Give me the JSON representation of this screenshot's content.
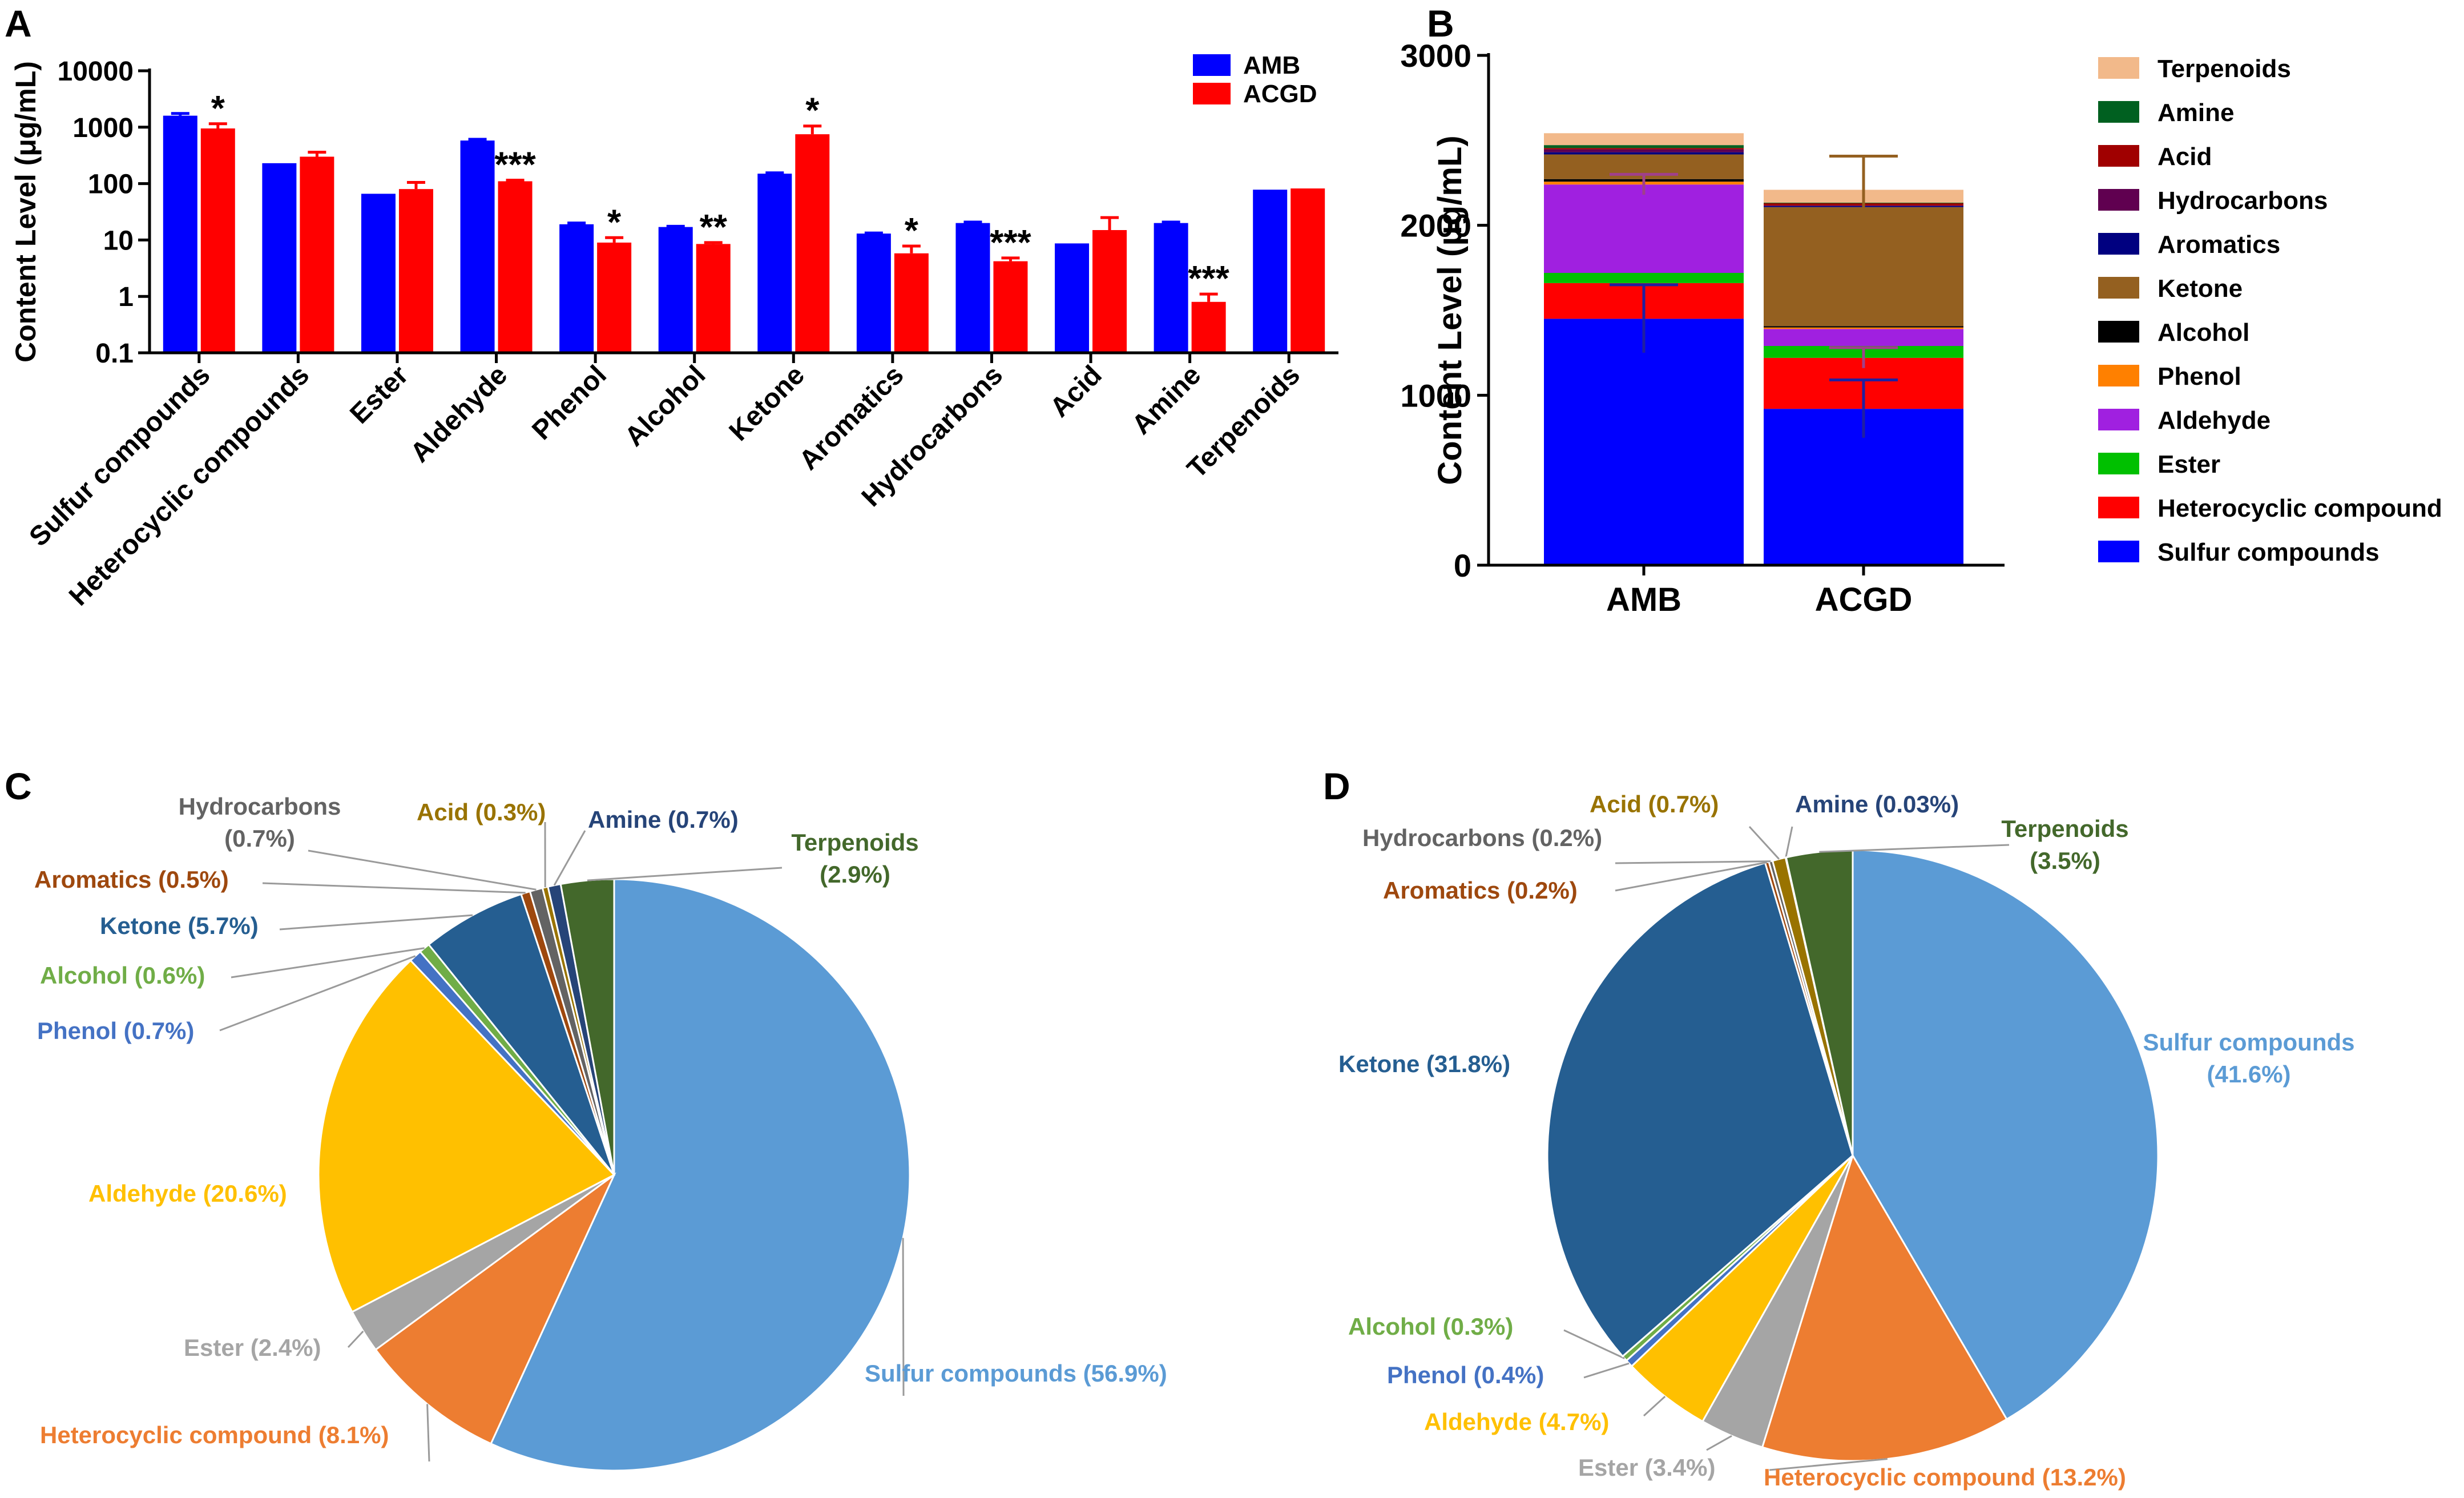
{
  "colors": {
    "amb": "#0000FF",
    "acgd": "#FF0000",
    "stack": {
      "Sulfur compounds": "#0000FF",
      "Heterocyclic compound": "#FF0000",
      "Ester": "#00C000",
      "Aldehyde": "#A020E0",
      "Phenol": "#FF8000",
      "Alcohol": "#000000",
      "Ketone": "#946020",
      "Aromatics": "#000080",
      "Hydrocarbons": "#600050",
      "Acid": "#A00000",
      "Amine": "#006020",
      "Terpenoids": "#F2B98A"
    },
    "pie": {
      "Sulfur compounds": "#5B9BD5",
      "Heterocyclic compound": "#ED7D31",
      "Ester": "#A5A5A5",
      "Aldehyde": "#FFC000",
      "Phenol": "#4472C4",
      "Alcohol": "#70AD47",
      "Ketone": "#255E91",
      "Aromatics": "#9E480E",
      "Hydrocarbons": "#636363",
      "Acid": "#997300",
      "Amine": "#264478",
      "Terpenoids": "#43682B"
    }
  },
  "chart_data": [
    {
      "panel": "A",
      "type": "bar",
      "scale": "log",
      "ylabel": "Content Level (μg/mL)",
      "ylim": [
        0.1,
        10000
      ],
      "yticks": [
        "0.1",
        "1",
        "10",
        "100",
        "1000",
        "10000"
      ],
      "categories": [
        "Sulfur compounds",
        "Heterocyclic compounds",
        "Ester",
        "Aldehyde",
        "Phenol",
        "Alcohol",
        "Ketone",
        "Aromatics",
        "Hydrocarbons",
        "Acid",
        "Amine",
        "Terpenoids"
      ],
      "series": [
        {
          "name": "AMB",
          "values": [
            1600,
            230,
            66,
            580,
            19,
            17,
            150,
            13,
            20,
            8.7,
            20,
            78
          ],
          "errors": [
            150,
            0,
            0,
            30,
            1,
            0.5,
            5,
            0.3,
            0.8,
            0,
            0.8,
            0
          ]
        },
        {
          "name": "ACGD",
          "values": [
            950,
            300,
            80,
            110,
            9,
            8.5,
            750,
            5.8,
            4.2,
            15,
            0.8,
            82
          ],
          "errors": [
            200,
            60,
            25,
            5,
            2,
            0.5,
            300,
            2,
            0.6,
            10,
            0.3,
            0
          ]
        }
      ],
      "annotations": [
        "*",
        "",
        "",
        "***",
        "*",
        "**",
        "*",
        "*",
        "***",
        "",
        "***",
        ""
      ]
    },
    {
      "panel": "B",
      "type": "bar",
      "stacked": true,
      "ylabel": "Content Level (μg/mL)",
      "ylim": [
        0,
        3000
      ],
      "yticks": [
        "0",
        "1000",
        "2000",
        "3000"
      ],
      "categories": [
        "AMB",
        "ACGD"
      ],
      "legend": [
        "Terpenoids",
        "Amine",
        "Acid",
        "Hydrocarbons",
        "Aromatics",
        "Ketone",
        "Alcohol",
        "Phenol",
        "Aldehyde",
        "Ester",
        "Heterocyclic compound",
        "Sulfur compounds"
      ],
      "series": [
        {
          "name": "Sulfur compounds",
          "values": [
            1450,
            920
          ]
        },
        {
          "name": "Heterocyclic compound",
          "values": [
            210,
            300
          ]
        },
        {
          "name": "Ester",
          "values": [
            60,
            70
          ]
        },
        {
          "name": "Aldehyde",
          "values": [
            520,
            100
          ]
        },
        {
          "name": "Phenol",
          "values": [
            17,
            9
          ]
        },
        {
          "name": "Alcohol",
          "values": [
            15,
            8
          ]
        },
        {
          "name": "Ketone",
          "values": [
            145,
            700
          ]
        },
        {
          "name": "Aromatics",
          "values": [
            13,
            6
          ]
        },
        {
          "name": "Hydrocarbons",
          "values": [
            17,
            4
          ]
        },
        {
          "name": "Acid",
          "values": [
            8,
            15
          ]
        },
        {
          "name": "Amine",
          "values": [
            17,
            1
          ]
        },
        {
          "name": "Terpenoids",
          "values": [
            70,
            76
          ]
        }
      ],
      "errors": [
        {
          "category": "AMB",
          "series": "Sulfur compounds",
          "value": 200
        },
        {
          "category": "AMB",
          "series": "Aldehyde",
          "value": 60
        },
        {
          "category": "ACGD",
          "series": "Sulfur compounds",
          "value": 170
        },
        {
          "category": "ACGD",
          "series": "Heterocyclic compound",
          "value": 60
        },
        {
          "category": "ACGD",
          "series": "Ketone",
          "value": 300
        }
      ]
    },
    {
      "panel": "C",
      "type": "pie",
      "slices": [
        {
          "name": "Sulfur compounds",
          "label": "Sulfur compounds (56.9%)",
          "value": 56.9
        },
        {
          "name": "Heterocyclic compound",
          "label": "Heterocyclic compound (8.1%)",
          "value": 8.1
        },
        {
          "name": "Ester",
          "label": "Ester (2.4%)",
          "value": 2.4
        },
        {
          "name": "Aldehyde",
          "label": "Aldehyde (20.6%)",
          "value": 20.6
        },
        {
          "name": "Phenol",
          "label": "Phenol (0.7%)",
          "value": 0.7
        },
        {
          "name": "Alcohol",
          "label": "Alcohol (0.6%)",
          "value": 0.6
        },
        {
          "name": "Ketone",
          "label": "Ketone (5.7%)",
          "value": 5.7
        },
        {
          "name": "Aromatics",
          "label": "Aromatics (0.5%)",
          "value": 0.5
        },
        {
          "name": "Hydrocarbons",
          "label": "Hydrocarbons (0.7%)",
          "value": 0.7
        },
        {
          "name": "Acid",
          "label": "Acid (0.3%)",
          "value": 0.3
        },
        {
          "name": "Amine",
          "label": "Amine (0.7%)",
          "value": 0.7
        },
        {
          "name": "Terpenoids",
          "label": "Terpenoids (2.9%)",
          "value": 2.9
        }
      ]
    },
    {
      "panel": "D",
      "type": "pie",
      "slices": [
        {
          "name": "Sulfur compounds",
          "label": "Sulfur compounds (41.6%)",
          "value": 41.6
        },
        {
          "name": "Heterocyclic compound",
          "label": "Heterocyclic compound (13.2%)",
          "value": 13.2
        },
        {
          "name": "Ester",
          "label": "Ester (3.4%)",
          "value": 3.4
        },
        {
          "name": "Aldehyde",
          "label": "Aldehyde (4.7%)",
          "value": 4.7
        },
        {
          "name": "Phenol",
          "label": "Phenol (0.4%)",
          "value": 0.4
        },
        {
          "name": "Alcohol",
          "label": "Alcohol (0.3%)",
          "value": 0.3
        },
        {
          "name": "Ketone",
          "label": "Ketone (31.8%)",
          "value": 31.8
        },
        {
          "name": "Aromatics",
          "label": "Aromatics (0.2%)",
          "value": 0.2
        },
        {
          "name": "Hydrocarbons",
          "label": "Hydrocarbons (0.2%)",
          "value": 0.2
        },
        {
          "name": "Acid",
          "label": "Acid (0.7%)",
          "value": 0.7
        },
        {
          "name": "Amine",
          "label": "Amine (0.03%)",
          "value": 0.03
        },
        {
          "name": "Terpenoids",
          "label": "Terpenoids (3.5%)",
          "value": 3.5
        }
      ]
    }
  ]
}
